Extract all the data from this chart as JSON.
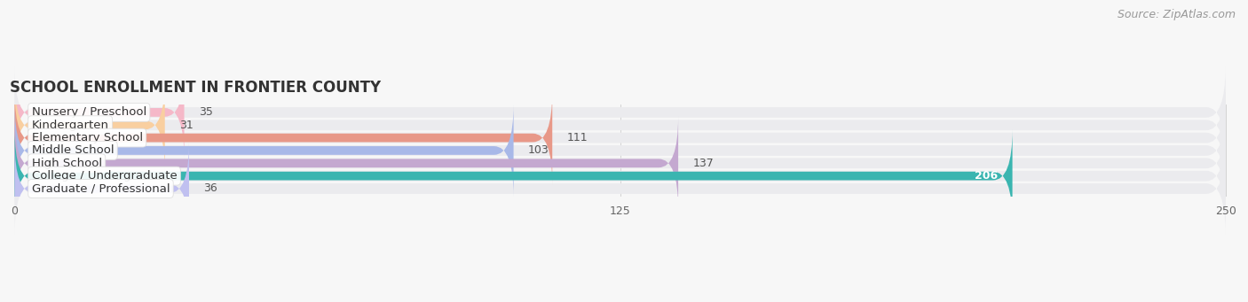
{
  "title": "SCHOOL ENROLLMENT IN FRONTIER COUNTY",
  "source": "Source: ZipAtlas.com",
  "categories": [
    "Nursery / Preschool",
    "Kindergarten",
    "Elementary School",
    "Middle School",
    "High School",
    "College / Undergraduate",
    "Graduate / Professional"
  ],
  "values": [
    35,
    31,
    111,
    103,
    137,
    206,
    36
  ],
  "bar_colors": [
    "#f5b8c8",
    "#f9cfa0",
    "#e89888",
    "#a8b8e8",
    "#c4a8d0",
    "#3ab5b0",
    "#c0c0f0"
  ],
  "track_color": "#ebebee",
  "xlim_max": 250,
  "xticks": [
    0,
    125,
    250
  ],
  "background_color": "#f7f7f7",
  "title_fontsize": 12,
  "source_fontsize": 9,
  "label_fontsize": 9.5,
  "value_fontsize": 9,
  "value_inside_color": "#ffffff",
  "value_outside_color": "#555555",
  "inside_threshold": 200
}
